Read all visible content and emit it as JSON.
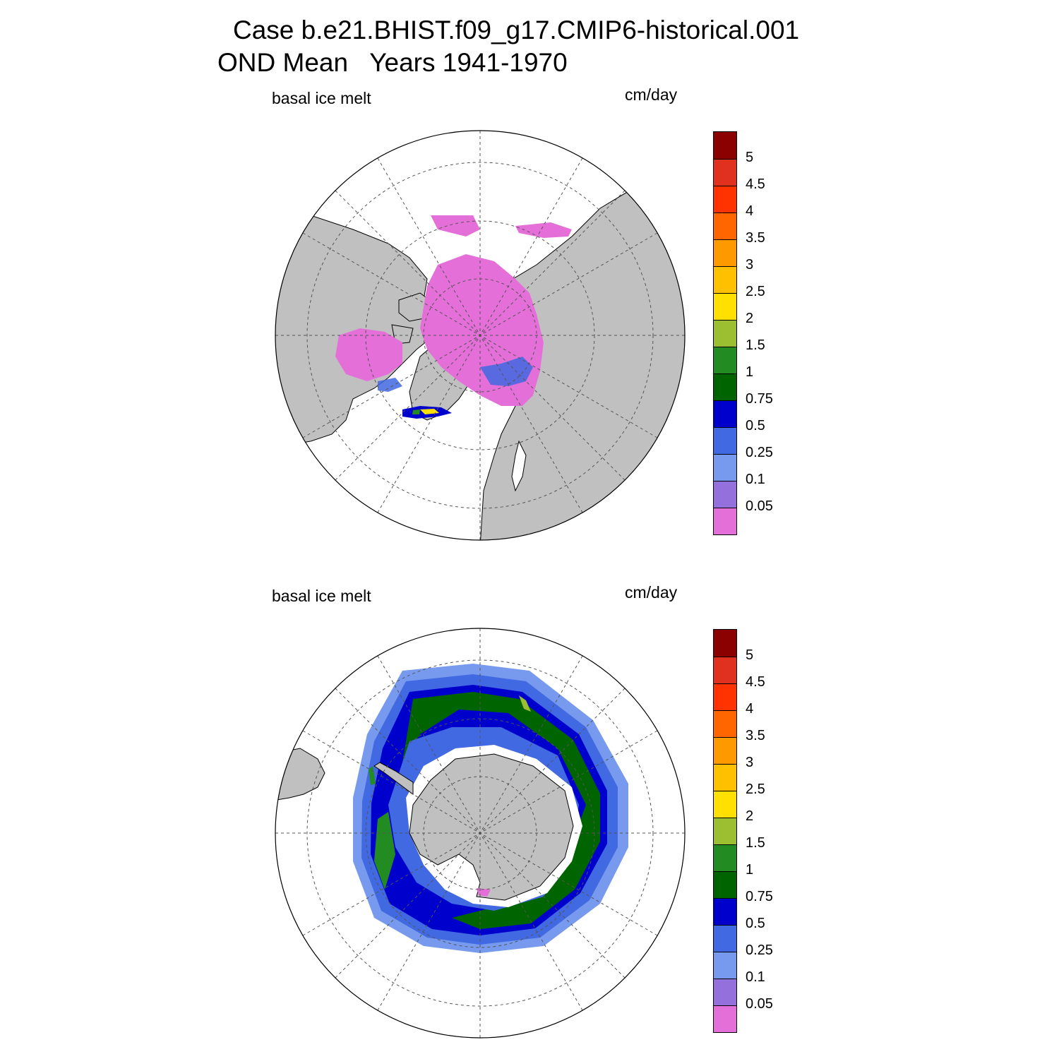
{
  "title": {
    "line1": "Case b.e21.BHIST.f09_g17.CMIP6-historical.001",
    "line2": "OND Mean   Years 1941-1970"
  },
  "panels": [
    {
      "id": "north",
      "hemisphere": "northern",
      "left_label": "basal ice melt",
      "right_label": "cm/day"
    },
    {
      "id": "south",
      "hemisphere": "southern",
      "left_label": "basal ice melt",
      "right_label": "cm/day"
    }
  ],
  "legend": {
    "tick_labels": [
      "5",
      "4.5",
      "4",
      "3.5",
      "3",
      "2.5",
      "2",
      "1.5",
      "1",
      "0.75",
      "0.5",
      "0.25",
      "0.1",
      "0.05"
    ],
    "colors_top_to_bottom": [
      "#8b0000",
      "#e0301e",
      "#ff3300",
      "#ff6600",
      "#ff9900",
      "#ffc000",
      "#ffe000",
      "#9bbf30",
      "#228b22",
      "#006400",
      "#0000cd",
      "#4169e1",
      "#7799ee",
      "#9370db",
      "#e46fd8"
    ]
  },
  "colors": {
    "land": "#c0c0c0",
    "ocean": "#ffffff",
    "arctic_ice": "#e46fd8"
  }
}
